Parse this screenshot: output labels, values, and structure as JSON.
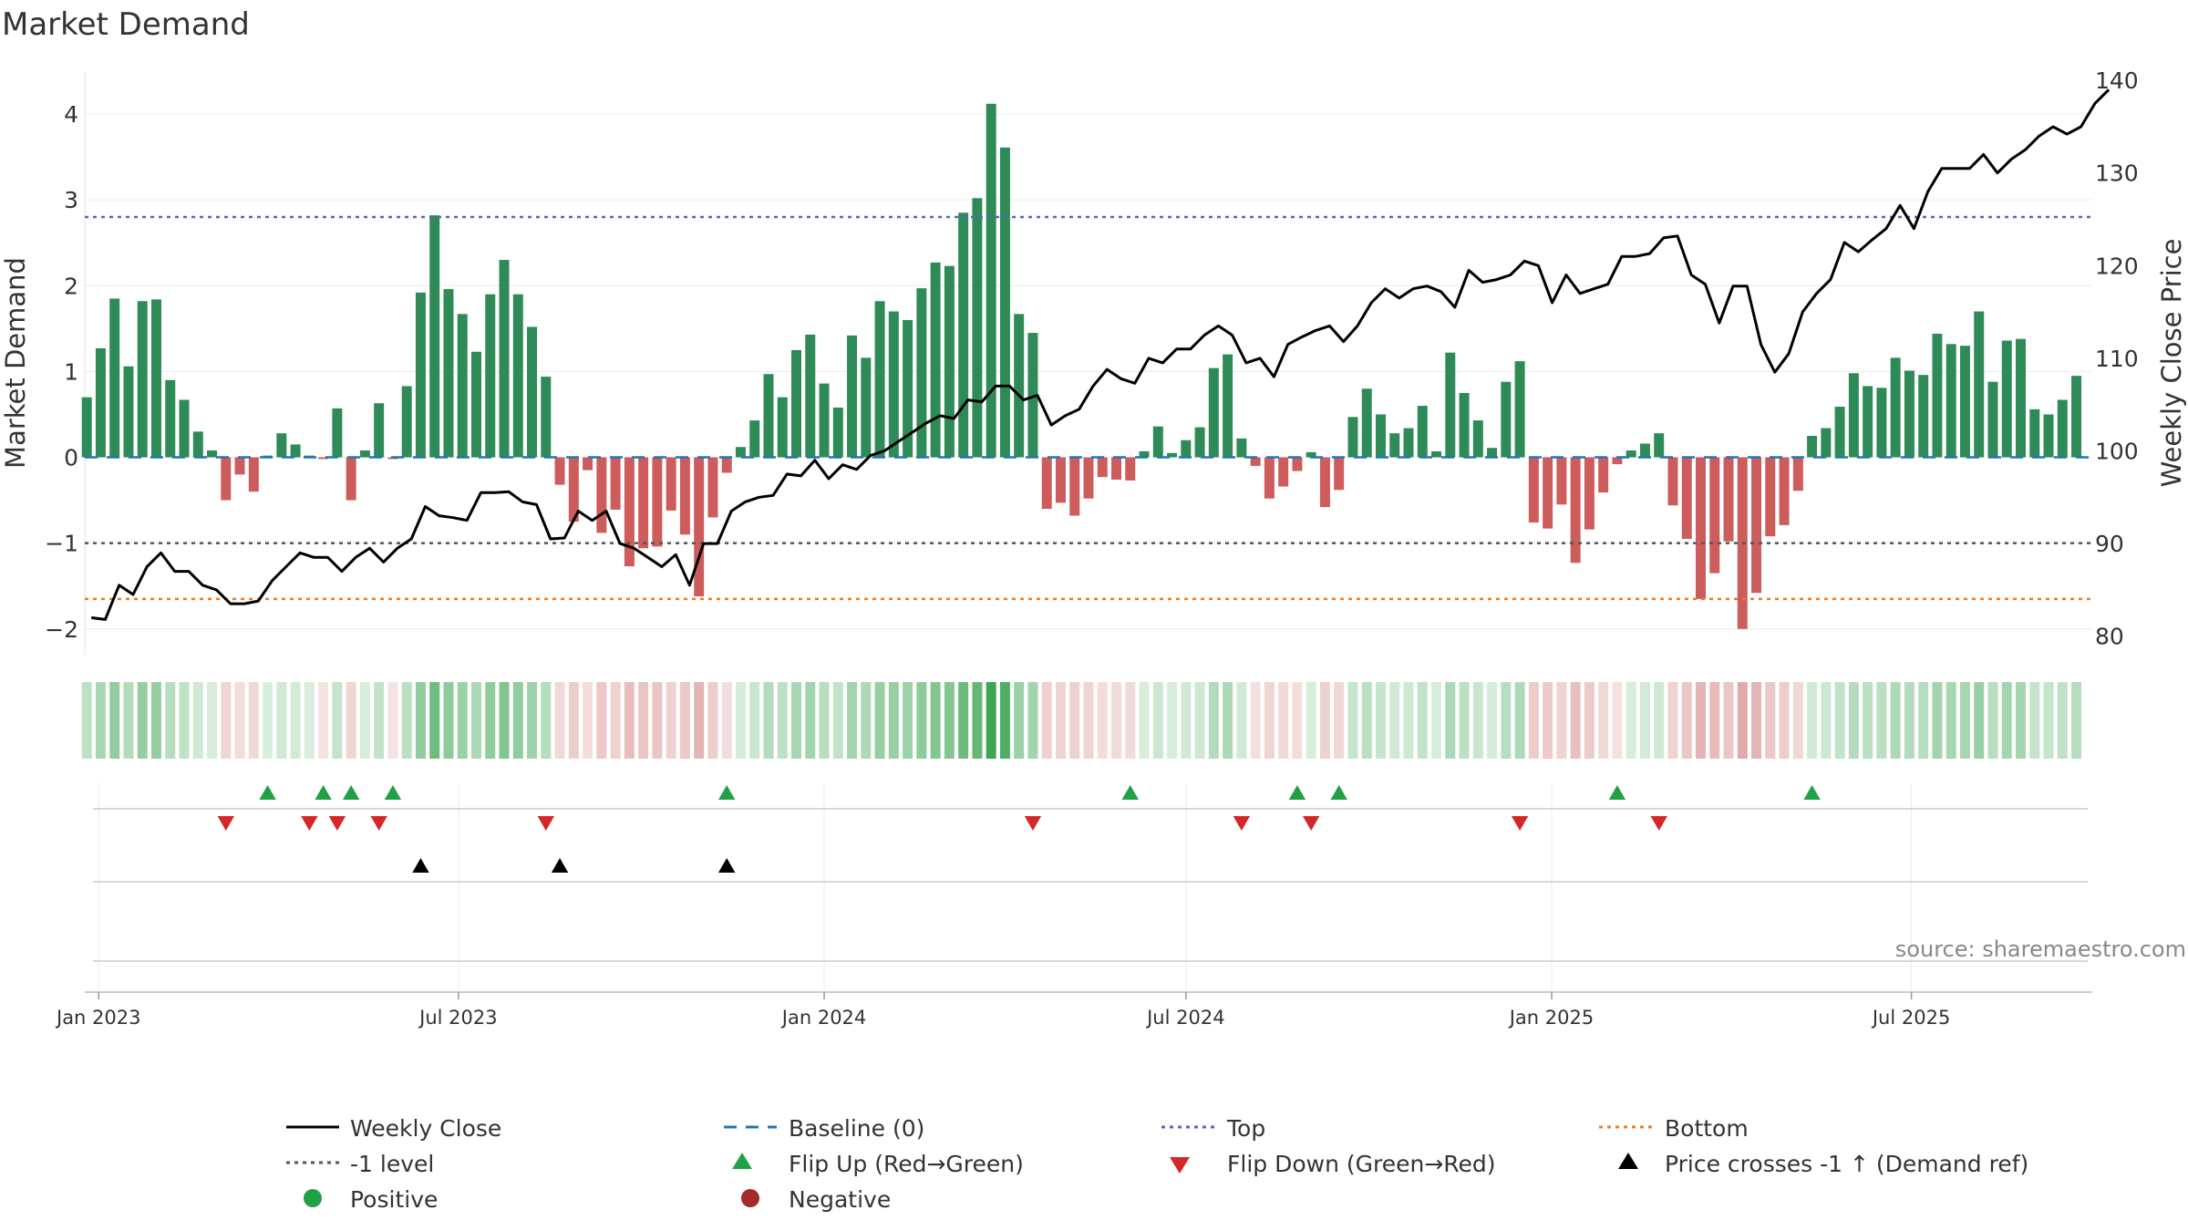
{
  "chart_data": {
    "type": "bar+line",
    "title": "Market Demand",
    "ylabel_left": "Market Demand",
    "ylabel_right": "Weekly Close Price",
    "ylim_left": [
      -2.3,
      4.5
    ],
    "ylim_right": [
      78,
      141
    ],
    "yticks_left": [
      -2,
      -1,
      0,
      1,
      2,
      3,
      4
    ],
    "ytick_labels_left": [
      "−2",
      "−1",
      "0",
      "1",
      "2",
      "3",
      "4"
    ],
    "yticks_right": [
      80,
      90,
      100,
      110,
      120,
      130,
      140
    ],
    "x_start": "2022-12-25",
    "x_end": "2025-09-30",
    "xticks": [
      {
        "date": "2023-01-01",
        "label": "Jan 2023"
      },
      {
        "date": "2023-07-01",
        "label": "Jul 2023"
      },
      {
        "date": "2024-01-01",
        "label": "Jan 2024"
      },
      {
        "date": "2024-07-01",
        "label": "Jul 2024"
      },
      {
        "date": "2025-01-01",
        "label": "Jan 2025"
      },
      {
        "date": "2025-07-01",
        "label": "Jul 2025"
      }
    ],
    "first_week": "2022-12-26",
    "levels": {
      "top": 2.8,
      "minus1": -1.0,
      "bottom": -1.65,
      "baseline": 0
    },
    "demand": [
      0.7,
      1.27,
      1.85,
      1.06,
      1.82,
      1.84,
      0.9,
      0.67,
      0.3,
      0.08,
      -0.5,
      -0.2,
      -0.4,
      0.02,
      0.28,
      0.15,
      0.02,
      -0.02,
      0.57,
      -0.5,
      0.08,
      0.63,
      -0.02,
      0.83,
      1.92,
      2.82,
      1.96,
      1.67,
      1.23,
      1.9,
      2.3,
      1.9,
      1.52,
      0.94,
      -0.32,
      -0.75,
      -0.15,
      -0.88,
      -0.61,
      -1.27,
      -1.06,
      -1.04,
      -0.62,
      -0.9,
      -1.62,
      -0.7,
      -0.18,
      0.12,
      0.43,
      0.97,
      0.7,
      1.25,
      1.43,
      0.86,
      0.58,
      1.42,
      1.16,
      1.82,
      1.7,
      1.6,
      1.97,
      2.27,
      2.23,
      2.85,
      3.02,
      4.12,
      3.61,
      1.67,
      1.45,
      -0.6,
      -0.53,
      -0.68,
      -0.48,
      -0.23,
      -0.26,
      -0.27,
      0.07,
      0.36,
      0.05,
      0.2,
      0.35,
      1.04,
      1.2,
      0.22,
      -0.1,
      -0.48,
      -0.34,
      -0.16,
      0.06,
      -0.58,
      -0.38,
      0.47,
      0.8,
      0.5,
      0.28,
      0.34,
      0.6,
      0.07,
      1.22,
      0.75,
      0.43,
      0.11,
      0.88,
      1.12,
      -0.76,
      -0.83,
      -0.55,
      -1.23,
      -0.84,
      -0.41,
      -0.08,
      0.08,
      0.16,
      0.28,
      -0.56,
      -0.95,
      -1.65,
      -1.35,
      -0.98,
      -2.0,
      -1.58,
      -0.92,
      -0.79,
      -0.39,
      0.25,
      0.34,
      0.59,
      0.98,
      0.83,
      0.81,
      1.16,
      1.01,
      0.96,
      1.44,
      1.32,
      1.3,
      1.7,
      0.88,
      1.36,
      1.38,
      0.56,
      0.5,
      0.67,
      0.95
    ],
    "weekly_close": [
      82.0,
      81.8,
      85.5,
      84.5,
      87.5,
      89.0,
      87.0,
      87.0,
      85.5,
      85.0,
      83.5,
      83.5,
      83.8,
      86.0,
      87.5,
      89.0,
      88.5,
      88.5,
      87.0,
      88.5,
      89.5,
      88.0,
      89.5,
      90.5,
      94.0,
      93.0,
      92.8,
      92.5,
      95.5,
      95.5,
      95.6,
      94.5,
      94.2,
      90.5,
      90.6,
      93.5,
      92.5,
      93.5,
      90.0,
      89.5,
      88.5,
      87.5,
      88.8,
      85.5,
      90.0,
      90.0,
      93.5,
      94.5,
      95.0,
      95.2,
      97.5,
      97.3,
      99.0,
      97.0,
      98.5,
      98.0,
      99.5,
      100.0,
      101.0,
      102.0,
      103.0,
      103.8,
      103.5,
      105.5,
      105.3,
      107.0,
      107.0,
      105.5,
      106.0,
      102.8,
      103.8,
      104.5,
      107.0,
      108.8,
      107.8,
      107.3,
      110.0,
      109.5,
      111.0,
      111.0,
      112.5,
      113.5,
      112.5,
      109.5,
      110.0,
      108.0,
      111.5,
      112.3,
      113.0,
      113.5,
      111.8,
      113.5,
      116.0,
      117.5,
      116.5,
      117.5,
      117.8,
      117.2,
      115.5,
      119.5,
      118.2,
      118.5,
      119.0,
      120.5,
      120.0,
      116.0,
      119.0,
      117.0,
      117.5,
      118.0,
      121.0,
      121.0,
      121.3,
      123.0,
      123.2,
      119.0,
      118.0,
      113.8,
      117.8,
      117.8,
      111.5,
      108.5,
      110.5,
      115.0,
      117.0,
      118.5,
      122.5,
      121.5,
      122.8,
      124.0,
      126.5,
      124.0,
      128.0,
      130.5,
      130.5,
      130.5,
      132.0,
      130.0,
      131.5,
      132.5,
      134.0,
      135.0,
      134.2,
      135.0,
      137.5,
      139.0
    ],
    "flip_up_weeks": [
      13,
      17,
      19,
      22,
      46,
      75,
      87,
      90,
      110,
      124
    ],
    "flip_down_weeks": [
      10,
      16,
      18,
      21,
      33,
      68,
      83,
      88,
      103,
      113
    ],
    "price_cross_weeks": [
      24,
      34,
      46
    ],
    "heat_colors": {
      "positive": "#2e9e46",
      "negative": "#c4625f"
    },
    "series_colors": {
      "positive_bar": "#2e8b57",
      "negative_bar": "#cd5c5c",
      "weekly_close": "#000000",
      "baseline": "#1f77b4",
      "top": "#5b5fc7",
      "minus1": "#555555",
      "bottom": "#e67e22",
      "flip_up": "#22a045",
      "flip_down": "#d62728",
      "price_cross": "#000000",
      "negative_dot": "#a52a2a"
    },
    "source": "source: sharemaestro.com",
    "legend": {
      "weekly_close": "Weekly Close",
      "baseline": "Baseline (0)",
      "top": "Top",
      "bottom": "Bottom",
      "minus1": "-1 level",
      "flip_up": "Flip Up (Red→Green)",
      "flip_down": "Flip Down (Green→Red)",
      "price_cross": "Price crosses -1 ↑ (Demand ref)",
      "positive": "Positive",
      "negative": "Negative"
    },
    "legend_placement": "bottom"
  }
}
